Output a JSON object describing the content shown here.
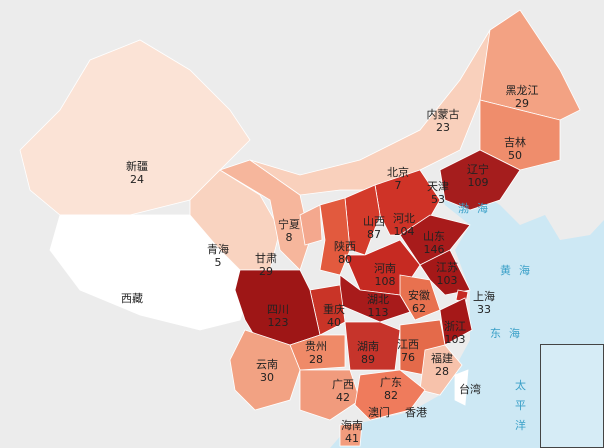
{
  "colors": {
    "land_outside": "#ececec",
    "sea": "#cde8f4",
    "darkest": "#a3161a",
    "lightest": "#fbe3d6",
    "no_data": "#ffffff"
  },
  "provinces": [
    {
      "name": "新疆",
      "value": "24"
    },
    {
      "name": "西藏",
      "value": ""
    },
    {
      "name": "青海",
      "value": "5"
    },
    {
      "name": "甘肃",
      "value": "29"
    },
    {
      "name": "宁夏",
      "value": "8"
    },
    {
      "name": "内蒙古",
      "value": "23"
    },
    {
      "name": "黑龙江",
      "value": "29"
    },
    {
      "name": "吉林",
      "value": "50"
    },
    {
      "name": "辽宁",
      "value": "109"
    },
    {
      "name": "北京",
      "value": "7"
    },
    {
      "name": "天津",
      "value": "53"
    },
    {
      "name": "河北",
      "value": "104"
    },
    {
      "name": "山西",
      "value": "87"
    },
    {
      "name": "陕西",
      "value": "80"
    },
    {
      "name": "山东",
      "value": "146"
    },
    {
      "name": "河南",
      "value": "108"
    },
    {
      "name": "江苏",
      "value": "103"
    },
    {
      "name": "安徽",
      "value": "62"
    },
    {
      "name": "上海",
      "value": "33"
    },
    {
      "name": "浙江",
      "value": "103"
    },
    {
      "name": "湖北",
      "value": "113"
    },
    {
      "name": "重庆",
      "value": "40"
    },
    {
      "name": "四川",
      "value": "123"
    },
    {
      "name": "贵州",
      "value": "28"
    },
    {
      "name": "云南",
      "value": "30"
    },
    {
      "name": "湖南",
      "value": "89"
    },
    {
      "name": "江西",
      "value": "76"
    },
    {
      "name": "福建",
      "value": "28"
    },
    {
      "name": "广西",
      "value": "42"
    },
    {
      "name": "广东",
      "value": "82"
    },
    {
      "name": "海南",
      "value": "41"
    },
    {
      "name": "台湾",
      "value": ""
    },
    {
      "name": "香港",
      "value": ""
    },
    {
      "name": "澳门",
      "value": ""
    }
  ],
  "seas": [
    "渤海",
    "黄海",
    "东海",
    "太平洋"
  ]
}
